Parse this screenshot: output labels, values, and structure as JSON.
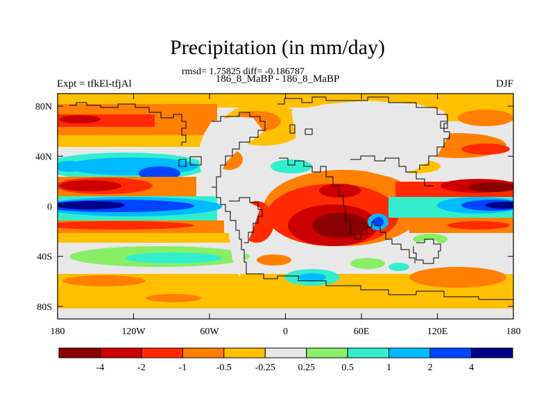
{
  "header": {
    "title": "Precipitation (in mm/day)",
    "stats": "rmsd= 1.75825 diff= -0.186787",
    "subtitle": "186_8_MaBP - 186_8_MaBP",
    "left_label": "Expt = tfkEl-tfjAl",
    "right_label": "DJF"
  },
  "chart_data": {
    "type": "heatmap",
    "title": "Precipitation (in mm/day)",
    "x_range": [
      -180,
      180
    ],
    "y_range": [
      -90,
      90
    ],
    "x_ticks": [
      {
        "value": -180,
        "label": "180"
      },
      {
        "value": -120,
        "label": "120W"
      },
      {
        "value": -60,
        "label": "60W"
      },
      {
        "value": 0,
        "label": "0"
      },
      {
        "value": 60,
        "label": "60E"
      },
      {
        "value": 120,
        "label": "120E"
      },
      {
        "value": 180,
        "label": "180"
      }
    ],
    "y_ticks": [
      {
        "value": 80,
        "label": "80N"
      },
      {
        "value": 40,
        "label": "40N"
      },
      {
        "value": 0,
        "label": "0"
      },
      {
        "value": -40,
        "label": "40S"
      },
      {
        "value": -80,
        "label": "80S"
      }
    ],
    "colorbar": {
      "colors": [
        "#8b0000",
        "#cc0000",
        "#ff2a00",
        "#ff7f00",
        "#ffc000",
        "#e8e8e8",
        "#88ee66",
        "#33eecc",
        "#00bbff",
        "#0044ff",
        "#000088"
      ],
      "labels": [
        "-4",
        "-2",
        "-1",
        "-0.5",
        "-0.25",
        "0.25",
        "0.5",
        "1",
        "2",
        "4"
      ]
    }
  }
}
